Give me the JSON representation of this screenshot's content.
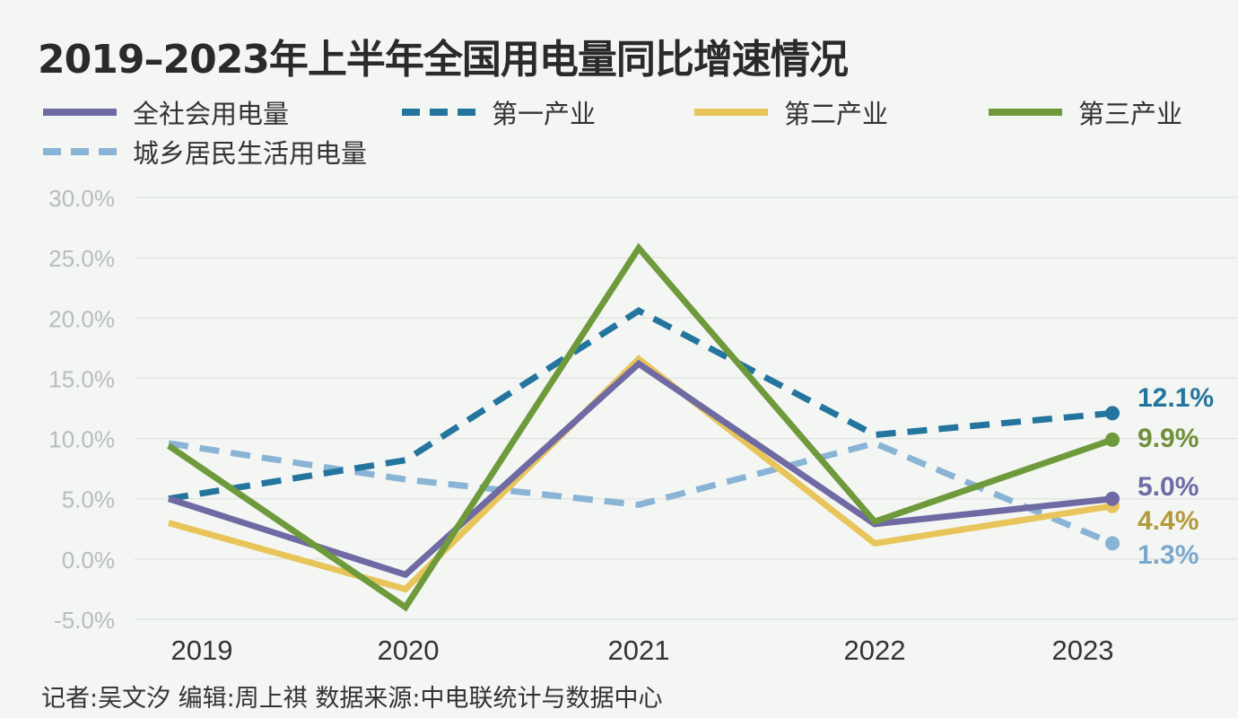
{
  "chart_data": {
    "type": "line",
    "title": "2019–2023年上半年全国用电量同比增速情况",
    "xlabel": "",
    "ylabel": "",
    "categories": [
      "2019",
      "2020",
      "2021",
      "2022",
      "2023"
    ],
    "ylim": [
      -5,
      30
    ],
    "yticks": [
      "30.0%",
      "25.0%",
      "20.0%",
      "15.0%",
      "10.0%",
      "5.0%",
      "0.0%",
      "-5.0%"
    ],
    "grid": true,
    "legend_position": "top",
    "series": [
      {
        "name": "全社会用电量",
        "color": "#6f6aa3",
        "dashed": false,
        "values": [
          5.0,
          -1.3,
          16.2,
          2.9,
          5.0
        ],
        "end_label": "5.0%"
      },
      {
        "name": "第一产业",
        "color": "#23759e",
        "dashed": true,
        "values": [
          5.0,
          8.2,
          20.6,
          10.3,
          12.1
        ],
        "end_label": "12.1%"
      },
      {
        "name": "第二产业",
        "color": "#e8c55a",
        "dashed": false,
        "values": [
          3.0,
          -2.5,
          16.6,
          1.3,
          4.4
        ],
        "end_label": "4.4%"
      },
      {
        "name": "第三产业",
        "color": "#6f9a3c",
        "dashed": false,
        "values": [
          9.4,
          -4.0,
          25.8,
          3.1,
          9.9
        ],
        "end_label": "9.9%"
      },
      {
        "name": "城乡居民生活用电量",
        "color": "#8ab4d6",
        "dashed": true,
        "values": [
          9.6,
          6.6,
          4.5,
          9.6,
          1.3
        ],
        "end_label": "1.3%"
      }
    ],
    "end_label_colors": [
      "#6f6aa3",
      "#23759e",
      "#b59a3a",
      "#6f8f3a",
      "#7aa7cc"
    ]
  },
  "footer": "记者:吴文汐   编辑:周上祺   数据来源:中电联统计与数据中心"
}
